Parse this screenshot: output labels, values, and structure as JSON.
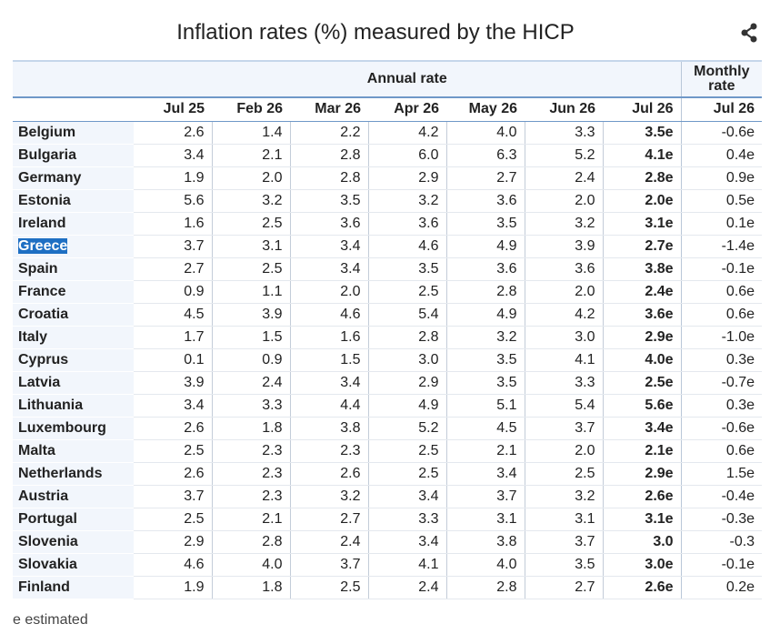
{
  "title": "Inflation rates (%) measured by the HICP",
  "header": {
    "annual": "Annual rate",
    "monthly": "Monthly rate"
  },
  "annual_months": [
    "Jul 25",
    "Feb 26",
    "Mar 26",
    "Apr 26",
    "May 26",
    "Jun 26",
    "Jul 26"
  ],
  "monthly_month": "Jul 26",
  "rows": [
    {
      "country": "Belgium",
      "annual": [
        "2.6",
        "1.4",
        "2.2",
        "4.2",
        "4.0",
        "3.3",
        "3.5e"
      ],
      "monthly": "-0.6e"
    },
    {
      "country": "Bulgaria",
      "annual": [
        "3.4",
        "2.1",
        "2.8",
        "6.0",
        "6.3",
        "5.2",
        "4.1e"
      ],
      "monthly": "0.4e"
    },
    {
      "country": "Germany",
      "annual": [
        "1.9",
        "2.0",
        "2.8",
        "2.9",
        "2.7",
        "2.4",
        "2.8e"
      ],
      "monthly": "0.9e"
    },
    {
      "country": "Estonia",
      "annual": [
        "5.6",
        "3.2",
        "3.5",
        "3.2",
        "3.6",
        "2.0",
        "2.0e"
      ],
      "monthly": "0.5e"
    },
    {
      "country": "Ireland",
      "annual": [
        "1.6",
        "2.5",
        "3.6",
        "3.6",
        "3.5",
        "3.2",
        "3.1e"
      ],
      "monthly": "0.1e"
    },
    {
      "country": "Greece",
      "annual": [
        "3.7",
        "3.1",
        "3.4",
        "4.6",
        "4.9",
        "3.9",
        "2.7e"
      ],
      "monthly": "-1.4e",
      "selected": true
    },
    {
      "country": "Spain",
      "annual": [
        "2.7",
        "2.5",
        "3.4",
        "3.5",
        "3.6",
        "3.6",
        "3.8e"
      ],
      "monthly": "-0.1e"
    },
    {
      "country": "France",
      "annual": [
        "0.9",
        "1.1",
        "2.0",
        "2.5",
        "2.8",
        "2.0",
        "2.4e"
      ],
      "monthly": "0.6e"
    },
    {
      "country": "Croatia",
      "annual": [
        "4.5",
        "3.9",
        "4.6",
        "5.4",
        "4.9",
        "4.2",
        "3.6e"
      ],
      "monthly": "0.6e"
    },
    {
      "country": "Italy",
      "annual": [
        "1.7",
        "1.5",
        "1.6",
        "2.8",
        "3.2",
        "3.0",
        "2.9e"
      ],
      "monthly": "-1.0e"
    },
    {
      "country": "Cyprus",
      "annual": [
        "0.1",
        "0.9",
        "1.5",
        "3.0",
        "3.5",
        "4.1",
        "4.0e"
      ],
      "monthly": "0.3e"
    },
    {
      "country": "Latvia",
      "annual": [
        "3.9",
        "2.4",
        "3.4",
        "2.9",
        "3.5",
        "3.3",
        "2.5e"
      ],
      "monthly": "-0.7e"
    },
    {
      "country": "Lithuania",
      "annual": [
        "3.4",
        "3.3",
        "4.4",
        "4.9",
        "5.1",
        "5.4",
        "5.6e"
      ],
      "monthly": "0.3e"
    },
    {
      "country": "Luxembourg",
      "annual": [
        "2.6",
        "1.8",
        "3.8",
        "5.2",
        "4.5",
        "3.7",
        "3.4e"
      ],
      "monthly": "-0.6e"
    },
    {
      "country": "Malta",
      "annual": [
        "2.5",
        "2.3",
        "2.3",
        "2.5",
        "2.1",
        "2.0",
        "2.1e"
      ],
      "monthly": "0.6e"
    },
    {
      "country": "Netherlands",
      "annual": [
        "2.6",
        "2.3",
        "2.6",
        "2.5",
        "3.4",
        "2.5",
        "2.9e"
      ],
      "monthly": "1.5e"
    },
    {
      "country": "Austria",
      "annual": [
        "3.7",
        "2.3",
        "3.2",
        "3.4",
        "3.7",
        "3.2",
        "2.6e"
      ],
      "monthly": "-0.4e"
    },
    {
      "country": "Portugal",
      "annual": [
        "2.5",
        "2.1",
        "2.7",
        "3.3",
        "3.1",
        "3.1",
        "3.1e"
      ],
      "monthly": "-0.3e"
    },
    {
      "country": "Slovenia",
      "annual": [
        "2.9",
        "2.8",
        "2.4",
        "3.4",
        "3.8",
        "3.7",
        "3.0"
      ],
      "monthly": "-0.3"
    },
    {
      "country": "Slovakia",
      "annual": [
        "4.6",
        "4.0",
        "3.7",
        "4.1",
        "4.0",
        "3.5",
        "3.0e"
      ],
      "monthly": "-0.1e"
    },
    {
      "country": "Finland",
      "annual": [
        "1.9",
        "1.8",
        "2.5",
        "2.4",
        "2.8",
        "2.7",
        "2.6e"
      ],
      "monthly": "0.2e"
    }
  ],
  "footnote": "e estimated",
  "icons": {
    "share": "share-icon"
  },
  "colors": {
    "header_bg": "#f2f6fc",
    "rule": "#6f98c8",
    "selection": "#1e6fc3"
  }
}
